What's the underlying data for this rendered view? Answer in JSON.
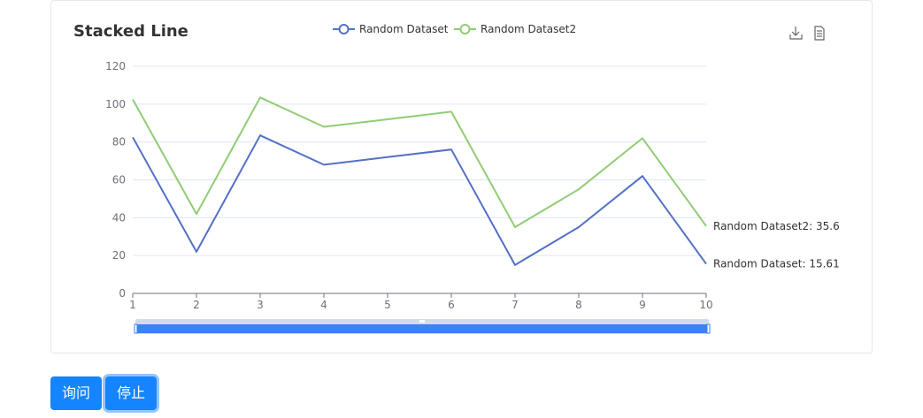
{
  "chart_data": {
    "type": "line",
    "title": "Stacked Line",
    "x": [
      "1",
      "2",
      "3",
      "4",
      "5",
      "6",
      "7",
      "8",
      "9",
      "10"
    ],
    "series": [
      {
        "name": "Random Dataset",
        "values": [
          82.5,
          22,
          83.5,
          68,
          72,
          76,
          15,
          35,
          62,
          15.61
        ],
        "color": "#5470c6",
        "end_label": "Random Dataset: 15.61"
      },
      {
        "name": "Random Dataset2",
        "values": [
          102.5,
          42,
          103.5,
          88,
          92,
          96,
          35,
          55,
          82,
          35.6
        ],
        "color": "#91cc75",
        "end_label": "Random Dataset2: 35.6"
      }
    ],
    "ylim": [
      0,
      120
    ],
    "yticks": [
      "0",
      "20",
      "40",
      "60",
      "80",
      "100",
      "120"
    ],
    "legend_position": "top-center",
    "grid": true,
    "toolbox": [
      "download-icon",
      "data-view-icon"
    ],
    "datazoom": {
      "start_percent": 0,
      "end_percent": 100
    }
  },
  "buttons": {
    "query": "询问",
    "stop": "停止"
  }
}
